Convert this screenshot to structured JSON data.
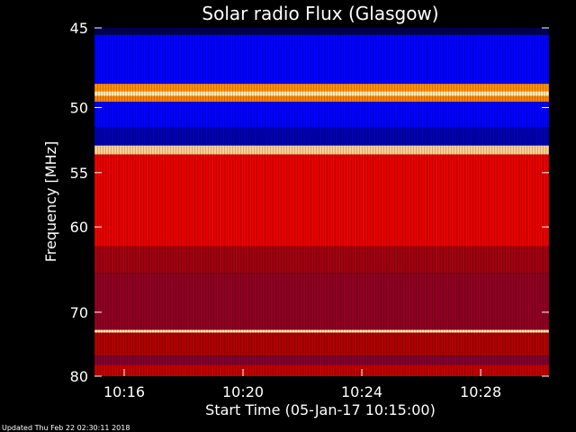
{
  "chart_data": {
    "type": "heatmap",
    "title": "Solar radio Flux (Glasgow)",
    "xlabel": "Start Time (05-Jan-17 10:15:00)",
    "ylabel": "Frequency [MHz]",
    "updated": "Updated Thu Feb 22 02:30:11 2018",
    "x_ticks": [
      {
        "label": "10:16",
        "minutes": 1
      },
      {
        "label": "10:20",
        "minutes": 5
      },
      {
        "label": "10:24",
        "minutes": 9
      },
      {
        "label": "10:28",
        "minutes": 13
      }
    ],
    "y_ticks": [
      {
        "label": "45",
        "value": 45
      },
      {
        "label": "50",
        "value": 50
      },
      {
        "label": "55",
        "value": 55
      },
      {
        "label": "60",
        "value": 60
      },
      {
        "label": "70",
        "value": 70
      },
      {
        "label": "80",
        "value": 80
      }
    ],
    "xlim_minutes": [
      0,
      15.3
    ],
    "y_axis_scale": "reciprocal",
    "ylim_mhz": [
      45,
      80
    ],
    "colors": {
      "background": "#000000",
      "text": "#ffffff",
      "deep_blue": "#000080",
      "blue": "#0000ff",
      "dark_red": "#a00000",
      "red": "#ff0000",
      "orange": "#ff8000",
      "cream": "#ffe8b0"
    },
    "bands": [
      {
        "from": 45.0,
        "to": 45.4,
        "color": "#000050"
      },
      {
        "from": 45.4,
        "to": 48.4,
        "color": "#0000ff"
      },
      {
        "from": 48.4,
        "to": 48.9,
        "color": "#ff9000"
      },
      {
        "from": 48.9,
        "to": 49.2,
        "color": "#ffe8b0"
      },
      {
        "from": 49.2,
        "to": 49.6,
        "color": "#ff8000"
      },
      {
        "from": 49.6,
        "to": 51.4,
        "color": "#0000ff"
      },
      {
        "from": 51.4,
        "to": 52.8,
        "color": "#0000b0"
      },
      {
        "from": 52.8,
        "to": 53.5,
        "color": "#ffd090"
      },
      {
        "from": 53.5,
        "to": 62.0,
        "color": "#e80000"
      },
      {
        "from": 62.0,
        "to": 65.0,
        "color": "#a00010"
      },
      {
        "from": 65.0,
        "to": 72.5,
        "color": "#900020"
      },
      {
        "from": 72.5,
        "to": 72.9,
        "color": "#ffe8b0"
      },
      {
        "from": 72.9,
        "to": 76.5,
        "color": "#b00000"
      },
      {
        "from": 76.5,
        "to": 78.0,
        "color": "#800030"
      },
      {
        "from": 78.0,
        "to": 80.0,
        "color": "#c00000"
      }
    ]
  }
}
